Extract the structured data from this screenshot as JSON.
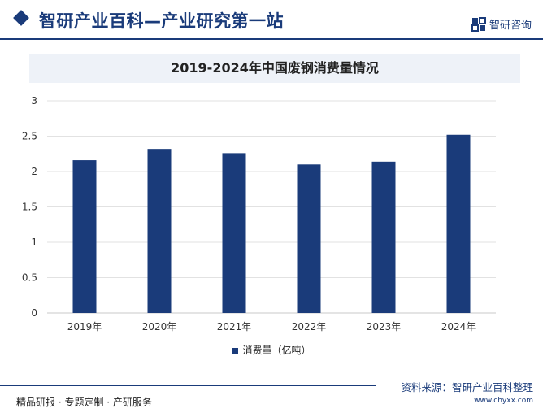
{
  "header": {
    "site_title": "智研产业百科—产业研究第一站",
    "brand_name": "智研咨询",
    "brand_color": "#1a3b7a"
  },
  "chart_data": {
    "type": "bar",
    "title": "2019-2024年中国废钢消费量情况",
    "categories": [
      "2019年",
      "2020年",
      "2021年",
      "2022年",
      "2023年",
      "2024年"
    ],
    "series": [
      {
        "name": "消费量（亿吨）",
        "values": [
          2.16,
          2.32,
          2.26,
          2.1,
          2.14,
          2.52
        ],
        "color": "#1a3b7a"
      }
    ],
    "ylim": [
      0,
      3
    ],
    "yticks": [
      "0",
      "0.5",
      "1",
      "1.5",
      "2",
      "2.5",
      "3"
    ],
    "ytick_values": [
      0,
      0.5,
      1,
      1.5,
      2,
      2.5,
      3
    ],
    "grid": true,
    "legend": "bottom"
  },
  "footer": {
    "slogan": "精品研报 · 专题定制 · 产研服务",
    "source": "资料来源：智研产业百科整理",
    "url": "www.chyxx.com"
  }
}
